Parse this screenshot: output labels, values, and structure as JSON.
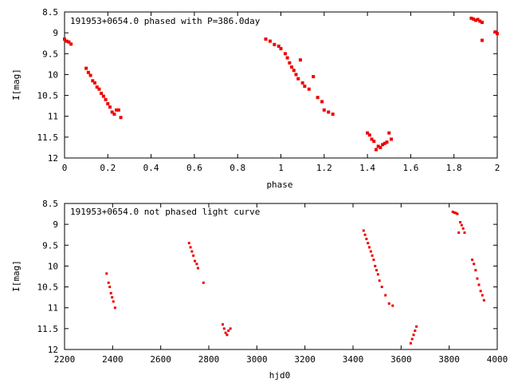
{
  "chart_data": [
    {
      "type": "scatter",
      "title": "191953+0654.0 phased with P=386.0day",
      "xlabel": "phase",
      "ylabel": "I[mag]",
      "xlim": [
        0,
        2
      ],
      "ylim": [
        12,
        8.5
      ],
      "y_inverted": true,
      "grid": false,
      "xticks": [
        "0",
        "0.2",
        "0.4",
        "0.6",
        "0.8",
        "1",
        "1.2",
        "1.4",
        "1.6",
        "1.8",
        "2"
      ],
      "yticks": [
        "8.5",
        "9",
        "9.5",
        "10",
        "10.5",
        "11",
        "11.5",
        "12"
      ],
      "marker_color": "#ee0000",
      "series": [
        {
          "x": [
            0.0,
            0.01,
            0.02,
            0.03,
            0.1,
            0.11,
            0.12,
            0.13,
            0.14,
            0.15,
            0.16,
            0.17,
            0.18,
            0.19,
            0.2,
            0.21,
            0.22,
            0.23,
            0.24,
            0.25,
            0.26,
            0.93,
            0.95,
            0.97,
            0.99,
            1.0,
            1.02,
            1.03,
            1.04,
            1.05,
            1.06,
            1.07,
            1.08,
            1.09,
            1.1,
            1.11,
            1.13,
            1.15,
            1.17,
            1.19,
            1.2,
            1.22,
            1.24,
            1.4,
            1.41,
            1.42,
            1.43,
            1.44,
            1.45,
            1.46,
            1.47,
            1.48,
            1.49,
            1.5,
            1.51,
            1.88,
            1.89,
            1.9,
            1.91,
            1.92,
            1.93,
            1.93,
            1.99,
            2.0
          ],
          "y": [
            9.15,
            9.2,
            9.22,
            9.27,
            9.85,
            9.95,
            10.02,
            10.15,
            10.2,
            10.3,
            10.35,
            10.45,
            10.52,
            10.6,
            10.7,
            10.78,
            10.9,
            10.95,
            10.85,
            10.85,
            11.03,
            9.15,
            9.2,
            9.28,
            9.32,
            9.38,
            9.5,
            9.6,
            9.72,
            9.82,
            9.9,
            10.0,
            10.1,
            9.65,
            10.2,
            10.28,
            10.35,
            10.05,
            10.55,
            10.65,
            10.85,
            10.9,
            10.95,
            11.4,
            11.45,
            11.55,
            11.6,
            11.8,
            11.72,
            11.75,
            11.68,
            11.65,
            11.62,
            11.4,
            11.55,
            8.65,
            8.67,
            8.7,
            8.68,
            8.72,
            8.75,
            9.18,
            8.98,
            9.02
          ]
        }
      ]
    },
    {
      "type": "scatter",
      "title": "191953+0654.0 not phased light curve",
      "xlabel": "hjd0",
      "ylabel": "I[mag]",
      "xlim": [
        2200,
        4000
      ],
      "ylim": [
        12,
        8.5
      ],
      "y_inverted": true,
      "grid": false,
      "xticks": [
        "2200",
        "2400",
        "2600",
        "2800",
        "3000",
        "3200",
        "3400",
        "3600",
        "3800",
        "4000"
      ],
      "yticks": [
        "8.5",
        "9",
        "9.5",
        "10",
        "10.5",
        "11",
        "11.5",
        "12"
      ],
      "marker_color": "#ee0000",
      "series": [
        {
          "x": [
            2375,
            2383,
            2388,
            2393,
            2398,
            2403,
            2410,
            2718,
            2724,
            2730,
            2736,
            2742,
            2750,
            2755,
            2778,
            2858,
            2864,
            2870,
            2876,
            2882,
            2890,
            3444,
            3450,
            3456,
            3462,
            3468,
            3474,
            3480,
            3486,
            3492,
            3498,
            3504,
            3510,
            3520,
            3535,
            3550,
            3565,
            3640,
            3646,
            3652,
            3658,
            3664,
            3815,
            3822,
            3828,
            3834,
            3840,
            3846,
            3852,
            3858,
            3864,
            3896,
            3903,
            3910,
            3917,
            3924,
            3931,
            3938,
            3945
          ],
          "y": [
            10.18,
            10.4,
            10.5,
            10.65,
            10.75,
            10.85,
            11.0,
            9.45,
            9.55,
            9.65,
            9.75,
            9.88,
            9.95,
            10.05,
            10.4,
            11.4,
            11.5,
            11.6,
            11.65,
            11.55,
            11.5,
            9.15,
            9.25,
            9.35,
            9.45,
            9.55,
            9.65,
            9.75,
            9.85,
            10.0,
            10.1,
            10.2,
            10.35,
            10.5,
            10.7,
            10.9,
            10.95,
            11.85,
            11.75,
            11.65,
            11.55,
            11.45,
            8.7,
            8.72,
            8.73,
            8.75,
            9.2,
            8.95,
            9.02,
            9.1,
            9.2,
            9.85,
            9.95,
            10.1,
            10.3,
            10.45,
            10.6,
            10.7,
            10.82
          ]
        }
      ]
    }
  ]
}
